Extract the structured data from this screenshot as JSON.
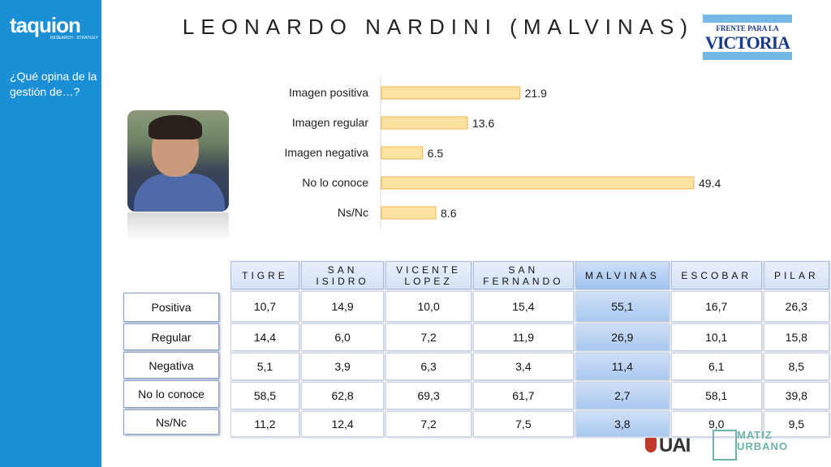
{
  "sidebar": {
    "logo": "taquion",
    "logo_sub": "RESEARCH · STRATEGY",
    "question": "¿Qué opina de la gestión de…?"
  },
  "title": "LEONARDO NARDINI (MALVINAS)",
  "party_logo": {
    "line1": "FRENTE PARA LA",
    "line2": "VICTORIA",
    "color": "#74b9e6"
  },
  "chart_data": {
    "type": "bar",
    "orientation": "horizontal",
    "categories": [
      "Imagen positiva",
      "Imagen regular",
      "Imagen negativa",
      "No lo conoce",
      "Ns/Nc"
    ],
    "values": [
      21.9,
      13.6,
      6.5,
      49.4,
      8.6
    ],
    "value_labels": [
      "21.9",
      "13.6",
      "6.5",
      "49.4",
      "8.6"
    ],
    "xlim": [
      0,
      55
    ],
    "bar_color": "#fde3a1",
    "bar_stroke": "#f0b94f",
    "grid": false
  },
  "table": {
    "columns": [
      "TIGRE",
      "SAN ISIDRO",
      "VICENTE LOPEZ",
      "SAN FERNANDO",
      "MALVINAS",
      "ESCOBAR",
      "PILAR"
    ],
    "highlight_column": "MALVINAS",
    "row_labels": [
      "Positiva",
      "Regular",
      "Negativa",
      "No lo conoce",
      "Ns/Nc"
    ],
    "rows": [
      [
        "10,7",
        "14,9",
        "10,0",
        "15,4",
        "55,1",
        "16,7",
        "26,3"
      ],
      [
        "14,4",
        "6,0",
        "7,2",
        "11,9",
        "26,9",
        "10,1",
        "15,8"
      ],
      [
        "5,1",
        "3,9",
        "6,3",
        "3,4",
        "11,4",
        "6,1",
        "8,5"
      ],
      [
        "58,5",
        "62,8",
        "69,3",
        "61,7",
        "2,7",
        "58,1",
        "39,8"
      ],
      [
        "11,2",
        "12,4",
        "7,2",
        "7,5",
        "3,8",
        "9,0",
        "9,5"
      ]
    ]
  },
  "footer": {
    "uai": "UAI",
    "matiz_line1": "MATIZ",
    "matiz_line2": "URBANO"
  }
}
